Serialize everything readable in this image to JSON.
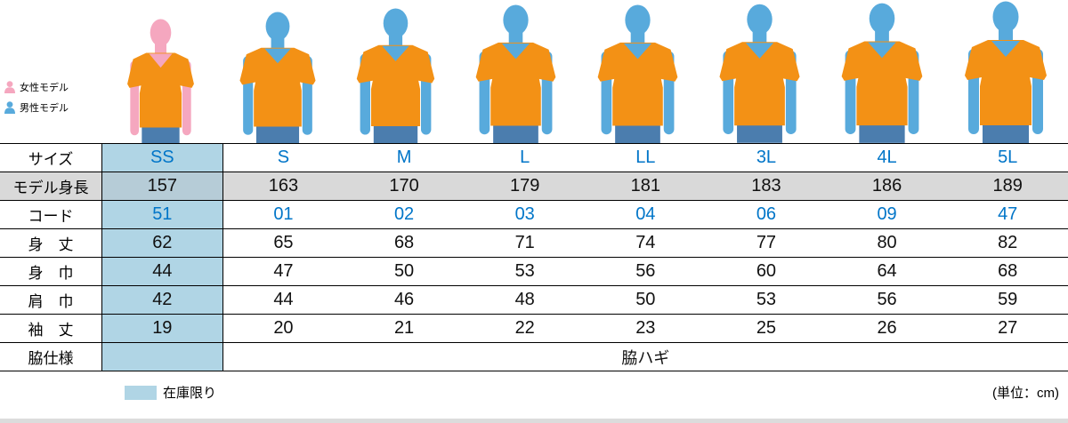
{
  "legend": {
    "female_label": "女性モデル",
    "male_label": "男性モデル"
  },
  "footer": {
    "stock_note": "在庫限り",
    "unit_note": "(単位：cm)"
  },
  "colors": {
    "female": "#f5a7bf",
    "male": "#58aadc",
    "shirt": "#f39115",
    "jeans": "#4b7dae",
    "highlight": "#b0d5e5",
    "highlight_gray": "#b6ccd7",
    "gray_row": "#d9d9d9",
    "blue_text": "#0075c8"
  },
  "models": [
    {
      "size": "SS",
      "gender": "female",
      "height": 140
    },
    {
      "size": "S",
      "gender": "male",
      "height": 148
    },
    {
      "size": "M",
      "gender": "male",
      "height": 152
    },
    {
      "size": "L",
      "gender": "male",
      "height": 156
    },
    {
      "size": "LL",
      "gender": "male",
      "height": 156
    },
    {
      "size": "3L",
      "gender": "male",
      "height": 157
    },
    {
      "size": "4L",
      "gender": "male",
      "height": 158
    },
    {
      "size": "5L",
      "gender": "male",
      "height": 160
    }
  ],
  "table": {
    "rows": [
      {
        "label": "サイズ",
        "key": "sizes",
        "kind": "size"
      },
      {
        "label": "モデル身長",
        "key": "model_height",
        "kind": "gray"
      },
      {
        "label": "コード",
        "key": "code",
        "kind": "blue"
      },
      {
        "label": "身　丈",
        "key": "body_length",
        "kind": "plain"
      },
      {
        "label": "身　巾",
        "key": "body_width",
        "kind": "plain"
      },
      {
        "label": "肩　巾",
        "key": "shoulder_width",
        "kind": "plain"
      },
      {
        "label": "袖　丈",
        "key": "sleeve_length",
        "kind": "plain"
      },
      {
        "label": "脇仕様",
        "key": "side_spec",
        "kind": "span"
      }
    ],
    "values": {
      "sizes": [
        "SS",
        "S",
        "M",
        "L",
        "LL",
        "3L",
        "4L",
        "5L"
      ],
      "model_height": [
        "157",
        "163",
        "170",
        "179",
        "181",
        "183",
        "186",
        "189"
      ],
      "code": [
        "51",
        "01",
        "02",
        "03",
        "04",
        "06",
        "09",
        "47"
      ],
      "body_length": [
        "62",
        "65",
        "68",
        "71",
        "74",
        "77",
        "80",
        "82"
      ],
      "body_width": [
        "44",
        "47",
        "50",
        "53",
        "56",
        "60",
        "64",
        "68"
      ],
      "shoulder_width": [
        "42",
        "44",
        "46",
        "48",
        "50",
        "53",
        "56",
        "59"
      ],
      "sleeve_length": [
        "19",
        "20",
        "21",
        "22",
        "23",
        "25",
        "26",
        "27"
      ],
      "side_spec": "脇ハギ"
    }
  },
  "chart_data": {
    "type": "table",
    "columns": [
      "SS",
      "S",
      "M",
      "L",
      "LL",
      "3L",
      "4L",
      "5L"
    ],
    "rows": [
      {
        "label": "モデル身長",
        "values": [
          157,
          163,
          170,
          179,
          181,
          183,
          186,
          189
        ]
      },
      {
        "label": "コード",
        "values": [
          "51",
          "01",
          "02",
          "03",
          "04",
          "06",
          "09",
          "47"
        ]
      },
      {
        "label": "身丈",
        "values": [
          62,
          65,
          68,
          71,
          74,
          77,
          80,
          82
        ]
      },
      {
        "label": "身巾",
        "values": [
          44,
          47,
          50,
          53,
          56,
          60,
          64,
          68
        ]
      },
      {
        "label": "肩巾",
        "values": [
          42,
          44,
          46,
          48,
          50,
          53,
          56,
          59
        ]
      },
      {
        "label": "袖丈",
        "values": [
          19,
          20,
          21,
          22,
          23,
          25,
          26,
          27
        ]
      },
      {
        "label": "脇仕様",
        "values": [
          "脇ハギ"
        ]
      }
    ],
    "unit": "cm",
    "notes": [
      "SS列は在庫限り (highlighted column)",
      "SSは女性モデル、S〜5Lは男性モデル"
    ]
  }
}
